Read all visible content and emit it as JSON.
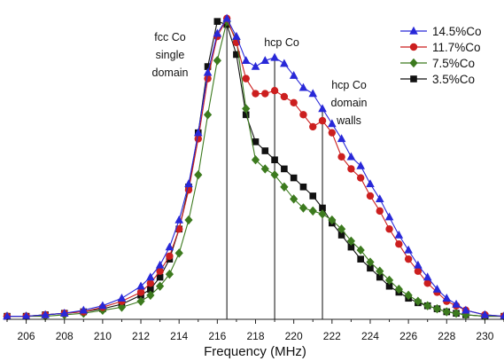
{
  "chart_data": {
    "type": "line",
    "xlabel": "Frequency (MHz)",
    "ylabel": "",
    "xlim": [
      205,
      231
    ],
    "ylim": [
      0,
      1.02
    ],
    "x_ticks": [
      "206",
      "208",
      "210",
      "212",
      "214",
      "216",
      "218",
      "220",
      "222",
      "224",
      "226",
      "228",
      "230"
    ],
    "x_tick_values": [
      206,
      208,
      210,
      212,
      214,
      216,
      218,
      220,
      222,
      224,
      226,
      228,
      230
    ],
    "grid": false,
    "legend_position": "top-right",
    "annotations": [
      {
        "lines": [
          "fcc Co",
          "single",
          "domain"
        ],
        "x": 216.5
      },
      {
        "lines": [
          "hcp Co"
        ],
        "x": 219.0
      },
      {
        "lines": [
          "hcp Co",
          "domain",
          "walls"
        ],
        "x": 221.5
      }
    ],
    "series": [
      {
        "name": "14.5%Co",
        "color": "#2828d8",
        "marker": "triangle",
        "x": [
          205,
          206,
          207,
          208,
          209,
          210,
          211,
          212,
          212.5,
          213,
          213.5,
          214,
          214.5,
          215,
          215.5,
          216,
          216.5,
          217,
          217.5,
          218,
          218.5,
          219,
          219.5,
          220,
          220.5,
          221,
          221.5,
          222,
          222.5,
          223,
          223.5,
          224,
          224.5,
          225,
          225.5,
          226,
          226.5,
          227,
          227.5,
          228,
          228.5,
          229,
          230,
          231
        ],
        "values": [
          0.01,
          0.01,
          0.015,
          0.02,
          0.03,
          0.045,
          0.07,
          0.11,
          0.14,
          0.18,
          0.24,
          0.33,
          0.45,
          0.62,
          0.82,
          0.95,
          1.0,
          0.94,
          0.86,
          0.84,
          0.86,
          0.87,
          0.85,
          0.81,
          0.77,
          0.75,
          0.7,
          0.65,
          0.6,
          0.54,
          0.51,
          0.45,
          0.4,
          0.34,
          0.28,
          0.23,
          0.18,
          0.14,
          0.1,
          0.07,
          0.05,
          0.03,
          0.015,
          0.01
        ]
      },
      {
        "name": "11.7%Co",
        "color": "#cc1f1f",
        "marker": "circle",
        "x": [
          205,
          206,
          207,
          208,
          209,
          210,
          211,
          212,
          212.5,
          213,
          213.5,
          214,
          214.5,
          215,
          215.5,
          216,
          216.5,
          217,
          217.5,
          218,
          218.5,
          219,
          219.5,
          220,
          220.5,
          221,
          221.5,
          222,
          222.5,
          223,
          223.5,
          224,
          224.5,
          225,
          225.5,
          226,
          226.5,
          227,
          227.5,
          228,
          228.5,
          229,
          230,
          231
        ],
        "values": [
          0.01,
          0.01,
          0.015,
          0.02,
          0.025,
          0.04,
          0.06,
          0.09,
          0.12,
          0.16,
          0.21,
          0.3,
          0.43,
          0.6,
          0.8,
          0.94,
          1.0,
          0.92,
          0.8,
          0.75,
          0.75,
          0.76,
          0.74,
          0.72,
          0.68,
          0.64,
          0.66,
          0.62,
          0.54,
          0.5,
          0.47,
          0.41,
          0.36,
          0.3,
          0.25,
          0.2,
          0.16,
          0.12,
          0.09,
          0.06,
          0.045,
          0.03,
          0.015,
          0.01
        ]
      },
      {
        "name": "7.5%Co",
        "color": "#3c7a1e",
        "marker": "diamond",
        "x": [
          205,
          206,
          207,
          208,
          209,
          210,
          211,
          212,
          212.5,
          213,
          213.5,
          214,
          214.5,
          215,
          215.5,
          216,
          216.5,
          217,
          217.5,
          218,
          218.5,
          219,
          219.5,
          220,
          220.5,
          221,
          221.5,
          222,
          222.5,
          223,
          223.5,
          224,
          224.5,
          225,
          225.5,
          226,
          226.5,
          227,
          227.5,
          228,
          228.5,
          229,
          230,
          231
        ],
        "values": [
          0.01,
          0.01,
          0.01,
          0.015,
          0.02,
          0.03,
          0.04,
          0.06,
          0.08,
          0.11,
          0.15,
          0.22,
          0.33,
          0.48,
          0.68,
          0.86,
          0.99,
          0.93,
          0.7,
          0.53,
          0.5,
          0.48,
          0.44,
          0.4,
          0.37,
          0.36,
          0.35,
          0.33,
          0.3,
          0.26,
          0.23,
          0.19,
          0.16,
          0.13,
          0.1,
          0.08,
          0.06,
          0.045,
          0.035,
          0.025,
          0.02,
          0.015,
          0.01,
          0.01
        ]
      },
      {
        "name": "3.5%Co",
        "color": "#111111",
        "marker": "square",
        "x": [
          205,
          206,
          207,
          208,
          209,
          210,
          211,
          212,
          212.5,
          213,
          213.5,
          214,
          214.5,
          215,
          215.5,
          216,
          216.5,
          217,
          217.5,
          218,
          218.5,
          219,
          219.5,
          220,
          220.5,
          221,
          221.5,
          222,
          222.5,
          223,
          223.5,
          224,
          224.5,
          225,
          225.5,
          226,
          226.5,
          227,
          227.5,
          228,
          228.5,
          229,
          230,
          231
        ],
        "values": [
          0.01,
          0.01,
          0.015,
          0.02,
          0.025,
          0.035,
          0.05,
          0.08,
          0.1,
          0.14,
          0.2,
          0.3,
          0.44,
          0.62,
          0.84,
          0.99,
          0.98,
          0.88,
          0.68,
          0.59,
          0.56,
          0.53,
          0.5,
          0.47,
          0.44,
          0.41,
          0.37,
          0.32,
          0.28,
          0.24,
          0.2,
          0.17,
          0.14,
          0.11,
          0.09,
          0.07,
          0.055,
          0.045,
          0.035,
          0.025,
          0.02,
          0.015,
          0.01,
          0.01
        ]
      }
    ]
  }
}
